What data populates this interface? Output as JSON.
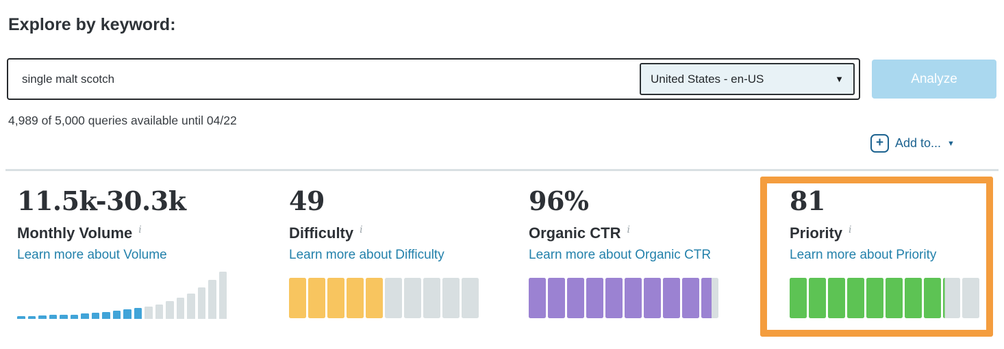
{
  "header": {
    "title": "Explore by keyword:"
  },
  "search": {
    "value": "single malt scotch",
    "locale": {
      "selected": "United States - en-US"
    },
    "analyze_label": "Analyze"
  },
  "quota": {
    "text": "4,989 of 5,000 queries available until 04/22"
  },
  "add_to": {
    "label": "Add to...",
    "plus_glyph": "+",
    "caret_glyph": "▼"
  },
  "locale_caret_glyph": "▼",
  "colors": {
    "link_teal": "#2381ab",
    "action_blue": "#1d6390",
    "analyze_bg": "#aad8ef",
    "analyze_text": "#ffffff",
    "highlight_orange": "#f49d3e",
    "text_dark": "#2d3136",
    "info_gray": "#9aa3a8",
    "divider_gray": "#d9e0e3",
    "gauge_empty": "#d8dfe1"
  },
  "metrics": [
    {
      "value": "11.5k-30.3k",
      "label": "Monthly Volume",
      "info_icon": "i",
      "link": "Learn more about Volume",
      "highlighted": false
    },
    {
      "value": "49",
      "label": "Difficulty",
      "info_icon": "i",
      "link": "Learn more about Difficulty",
      "highlighted": false
    },
    {
      "value": "96%",
      "label": "Organic CTR",
      "info_icon": "i",
      "link": "Learn more about Organic CTR",
      "highlighted": false
    },
    {
      "value": "81",
      "label": "Priority",
      "info_icon": "i",
      "link": "Learn more about Priority",
      "highlighted": true
    }
  ],
  "chart_data": [
    {
      "type": "bar",
      "title": "Monthly Volume mini histogram",
      "values": [
        5,
        5,
        7,
        8,
        8,
        9,
        11,
        12,
        14,
        17,
        20,
        23,
        26,
        29,
        36,
        43,
        52,
        65,
        80,
        97
      ],
      "highlighted_bars": 12,
      "bar_color": "#41a4d8",
      "empty_color": "#d8dfe1",
      "ylim": [
        0,
        100
      ],
      "legend": "off",
      "grid": "off"
    },
    {
      "type": "bar",
      "title": "Difficulty gauge",
      "value": 49,
      "segments": 10,
      "segments_filled": 5.0,
      "color": "#f8c55f",
      "empty_color": "#d8dfe1"
    },
    {
      "type": "bar",
      "title": "Organic CTR gauge",
      "value": 96,
      "segments": 10,
      "segments_filled": 9.6,
      "color": "#9b82d2",
      "empty_color": "#d8dfe1"
    },
    {
      "type": "bar",
      "title": "Priority gauge",
      "value": 81,
      "segments": 10,
      "segments_filled": 8.1,
      "color": "#5dc354",
      "empty_color": "#d8dfe1"
    }
  ]
}
